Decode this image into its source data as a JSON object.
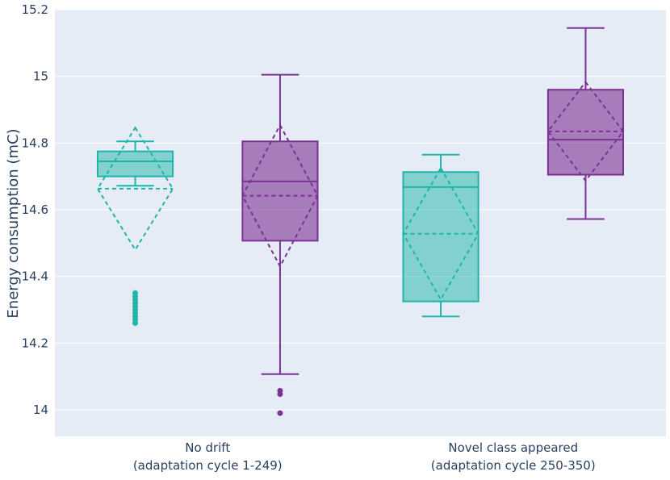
{
  "chart_data": {
    "type": "box",
    "ylabel": "Energy consumption (mC)",
    "xlabel": "",
    "ylim": [
      13.92,
      15.2
    ],
    "yticks": [
      14,
      14.2,
      14.4,
      14.6,
      14.8,
      15,
      15.2
    ],
    "ytick_labels": [
      "14",
      "14.2",
      "14.4",
      "14.6",
      "14.8",
      "15",
      "15.2"
    ],
    "grid": true,
    "legend": "none",
    "categories": [
      {
        "line1": "No drift",
        "line2": "(adaptation cycle 1-249)"
      },
      {
        "line1": "Novel class appeared",
        "line2": "(adaptation cycle 250-350)"
      }
    ],
    "series": [
      {
        "color": "#1fb5a8",
        "fill": "rgba(31,181,168,0.5)",
        "boxes": [
          {
            "category": 0,
            "q1": 14.7,
            "median": 14.745,
            "q3": 14.775,
            "lower_fence": 14.672,
            "upper_fence": 14.805,
            "mean": 14.663,
            "sd": 0.183,
            "outliers": [
              14.26,
              14.27,
              14.28,
              14.29,
              14.3,
              14.31,
              14.32,
              14.33,
              14.34,
              14.35
            ]
          },
          {
            "category": 1,
            "q1": 14.325,
            "median": 14.668,
            "q3": 14.713,
            "lower_fence": 14.28,
            "upper_fence": 14.765,
            "mean": 14.528,
            "sd": 0.197,
            "outliers": []
          }
        ]
      },
      {
        "color": "#7b3294",
        "fill": "rgba(123,50,148,0.6)",
        "boxes": [
          {
            "category": 0,
            "q1": 14.507,
            "median": 14.685,
            "q3": 14.805,
            "lower_fence": 14.107,
            "upper_fence": 15.005,
            "mean": 14.642,
            "sd": 0.212,
            "outliers": [
              14.057,
              14.047,
              13.99
            ]
          },
          {
            "category": 1,
            "q1": 14.705,
            "median": 14.81,
            "q3": 14.96,
            "lower_fence": 14.572,
            "upper_fence": 15.145,
            "mean": 14.835,
            "sd": 0.148,
            "outliers": []
          }
        ]
      }
    ]
  }
}
